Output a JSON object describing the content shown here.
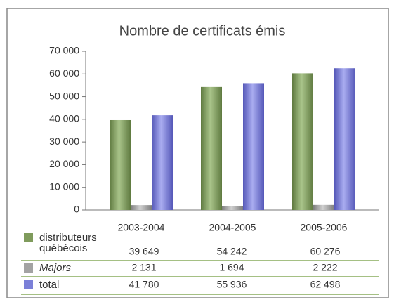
{
  "chart_data": {
    "type": "bar",
    "title": "Nombre de certificats émis",
    "categories": [
      "2003-2004",
      "2004-2005",
      "2005-2006"
    ],
    "series": [
      {
        "name": "distributeurs québécois",
        "color": "#7f9b5c",
        "values": [
          39649,
          54242,
          60276
        ],
        "value_labels": [
          "39 649",
          "54 242",
          "60 276"
        ]
      },
      {
        "name": "Majors",
        "color": "#a3a3a3",
        "values": [
          2131,
          1694,
          2222
        ],
        "value_labels": [
          "2 131",
          "1 694",
          "2 222"
        ]
      },
      {
        "name": "total",
        "color": "#7b80d8",
        "values": [
          41780,
          55936,
          62498
        ],
        "value_labels": [
          "41 780",
          "55 936",
          "62 498"
        ]
      }
    ],
    "ylim": [
      0,
      70000
    ],
    "yticks": [
      0,
      {
        "value": 10000,
        "label": "10 000"
      },
      {
        "value": 20000,
        "label": "20 000"
      },
      {
        "value": 30000,
        "label": "30 000"
      },
      {
        "value": 40000,
        "label": "40 000"
      },
      {
        "value": 50000,
        "label": "50 000"
      },
      {
        "value": 60000,
        "label": "60 000"
      },
      {
        "value": 70000,
        "label": "70 000"
      }
    ]
  }
}
